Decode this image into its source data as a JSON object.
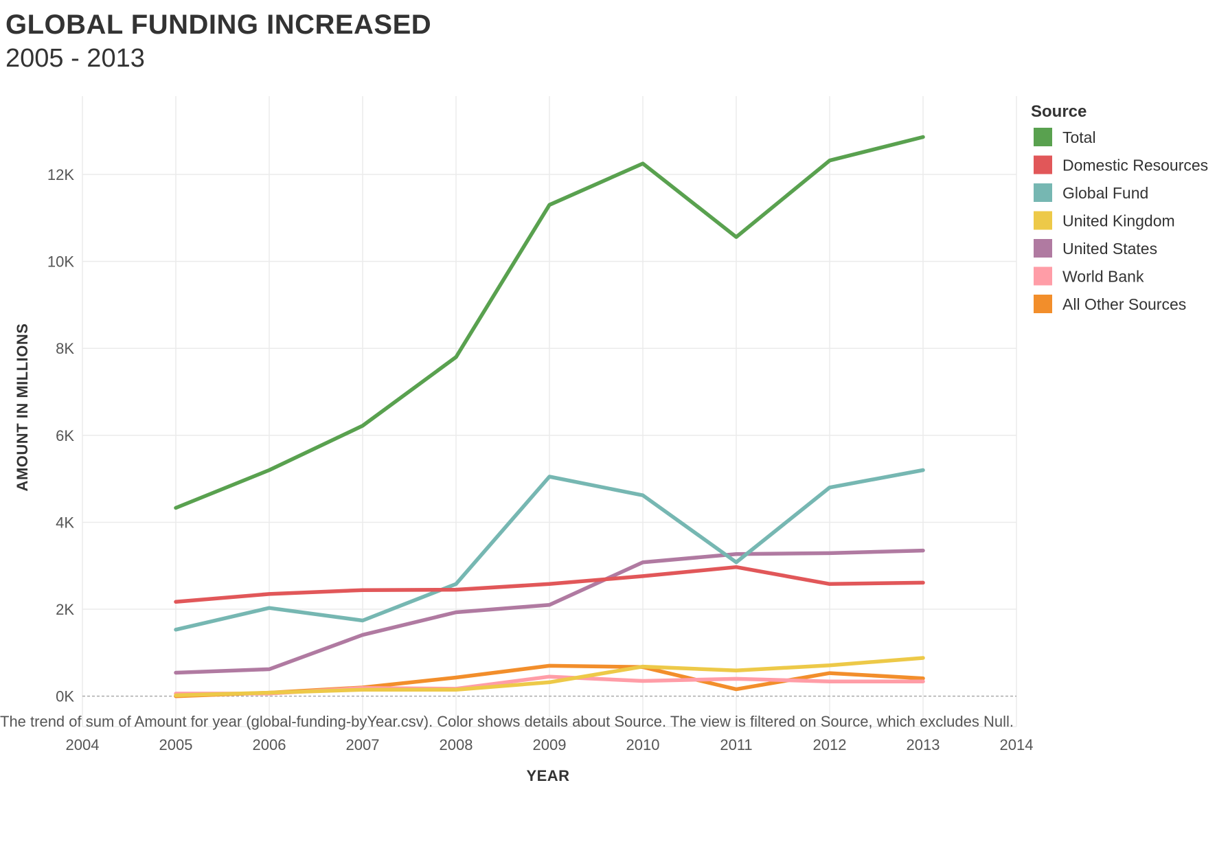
{
  "header": {
    "title": "GLOBAL FUNDING INCREASED",
    "subtitle": "2005 - 2013"
  },
  "caption": "The trend of sum of Amount for year (global-funding-byYear.csv).  Color shows details about Source. The view is filtered on Source, which excludes Null.",
  "chart_data": {
    "type": "line",
    "title": "GLOBAL FUNDING INCREASED",
    "subtitle": "2005 - 2013",
    "xlabel": "YEAR",
    "ylabel": "AMOUNT IN MILLIONS",
    "x": [
      2005,
      2006,
      2007,
      2008,
      2009,
      2010,
      2011,
      2012,
      2013
    ],
    "xlim": [
      2004,
      2014
    ],
    "x_ticks": [
      "2004",
      "2005",
      "2006",
      "2007",
      "2008",
      "2009",
      "2010",
      "2011",
      "2012",
      "2013",
      "2014"
    ],
    "ylim": [
      -700,
      13800
    ],
    "y_ticks": [
      0,
      2000,
      4000,
      6000,
      8000,
      10000,
      12000
    ],
    "y_tick_labels": [
      "0K",
      "2K",
      "4K",
      "6K",
      "8K",
      "10K",
      "12K"
    ],
    "grid": true,
    "zero_line": "dashed",
    "legend": {
      "title": "Source",
      "position": "right"
    },
    "series": [
      {
        "name": "Total",
        "color": "#59a14f",
        "values": [
          4330,
          5200,
          6220,
          7800,
          11300,
          12250,
          10560,
          12320,
          12860
        ]
      },
      {
        "name": "Domestic Resources",
        "color": "#e15759",
        "values": [
          2170,
          2350,
          2440,
          2450,
          2580,
          2760,
          2970,
          2580,
          2610
        ]
      },
      {
        "name": "Global Fund",
        "color": "#76b7b2",
        "values": [
          1530,
          2030,
          1740,
          2580,
          5050,
          4620,
          3080,
          4800,
          5200
        ]
      },
      {
        "name": "United Kingdom",
        "color": "#edc948",
        "values": [
          20,
          80,
          150,
          150,
          320,
          680,
          590,
          710,
          880
        ]
      },
      {
        "name": "United States",
        "color": "#b07aa1",
        "values": [
          540,
          620,
          1410,
          1930,
          2100,
          3080,
          3270,
          3290,
          3350
        ]
      },
      {
        "name": "World Bank",
        "color": "#ff9da7",
        "values": [
          60,
          60,
          190,
          170,
          450,
          350,
          400,
          340,
          340
        ]
      },
      {
        "name": "All Other Sources",
        "color": "#f28e2b",
        "values": [
          0,
          80,
          200,
          430,
          700,
          670,
          160,
          530,
          410
        ]
      }
    ]
  }
}
